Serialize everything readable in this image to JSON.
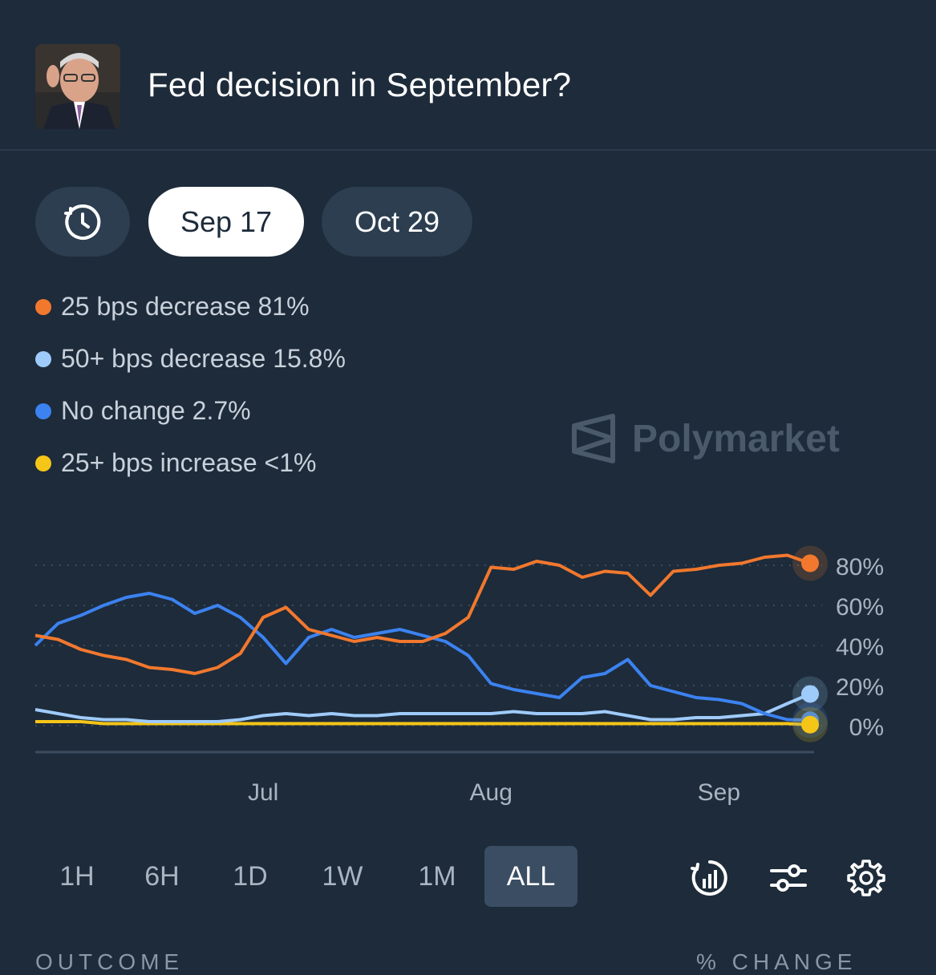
{
  "header": {
    "title": "Fed decision in September?"
  },
  "date_tabs": [
    {
      "label": "Sep 17",
      "active": true
    },
    {
      "label": "Oct 29",
      "active": false
    }
  ],
  "legend": [
    {
      "label": "25 bps decrease 81%",
      "color": "#f2782e"
    },
    {
      "label": "50+ bps decrease 15.8%",
      "color": "#9fcbfa"
    },
    {
      "label": "No change 2.7%",
      "color": "#3c82f0"
    },
    {
      "label": "25+ bps increase <1%",
      "color": "#f5c518"
    }
  ],
  "watermark": "Polymarket",
  "time_ranges": [
    "1H",
    "6H",
    "1D",
    "1W",
    "1M",
    "ALL"
  ],
  "active_range": "ALL",
  "footer": {
    "left": "OUTCOME",
    "right": "% CHANGE"
  },
  "chart_data": {
    "type": "line",
    "y_ticks": [
      "80%",
      "60%",
      "40%",
      "20%",
      "0%"
    ],
    "x_ticks": [
      "Jul",
      "Aug",
      "Sep"
    ],
    "ylim": [
      0,
      100
    ],
    "grid": true,
    "x": [
      "Jun 01",
      "Jun 04",
      "Jun 07",
      "Jun 10",
      "Jun 13",
      "Jun 16",
      "Jun 19",
      "Jun 22",
      "Jun 25",
      "Jun 28",
      "Jul 01",
      "Jul 04",
      "Jul 07",
      "Jul 10",
      "Jul 13",
      "Jul 16",
      "Jul 19",
      "Jul 22",
      "Jul 25",
      "Jul 28",
      "Jul 31",
      "Aug 03",
      "Aug 06",
      "Aug 09",
      "Aug 12",
      "Aug 15",
      "Aug 18",
      "Aug 21",
      "Aug 24",
      "Aug 27",
      "Aug 30",
      "Sep 02",
      "Sep 05",
      "Sep 08",
      "Sep 10"
    ],
    "series": [
      {
        "name": "25 bps decrease 81%",
        "color": "#f2782e",
        "values": [
          45,
          43,
          38,
          35,
          33,
          29,
          28,
          26,
          29,
          36,
          54,
          59,
          48,
          45,
          42,
          44,
          42,
          42,
          46,
          54,
          79,
          78,
          82,
          80,
          74,
          77,
          76,
          65,
          77,
          78,
          80,
          81,
          84,
          85,
          81
        ]
      },
      {
        "name": "50+ bps decrease 15.8%",
        "color": "#9fcbfa",
        "values": [
          8,
          6,
          4,
          3,
          3,
          2,
          2,
          2,
          2,
          3,
          5,
          6,
          5,
          6,
          5,
          5,
          6,
          6,
          6,
          6,
          6,
          7,
          6,
          6,
          6,
          7,
          5,
          3,
          3,
          4,
          4,
          5,
          6,
          11,
          15.8
        ]
      },
      {
        "name": "No change 2.7%",
        "color": "#3c82f0",
        "values": [
          40,
          51,
          55,
          60,
          64,
          66,
          63,
          56,
          60,
          54,
          44,
          31,
          44,
          48,
          44,
          46,
          48,
          45,
          42,
          35,
          21,
          18,
          16,
          14,
          24,
          26,
          33,
          20,
          17,
          14,
          13,
          11,
          6,
          3,
          2.7
        ]
      },
      {
        "name": "25+ bps increase <1%",
        "color": "#f5c518",
        "values": [
          2,
          2,
          2,
          1,
          1,
          1,
          1,
          1,
          1,
          1,
          1,
          1,
          1,
          1,
          1,
          1,
          1,
          1,
          1,
          1,
          1,
          1,
          1,
          1,
          1,
          1,
          1,
          1,
          1,
          1,
          1,
          1,
          1,
          1,
          0.5
        ]
      }
    ]
  }
}
